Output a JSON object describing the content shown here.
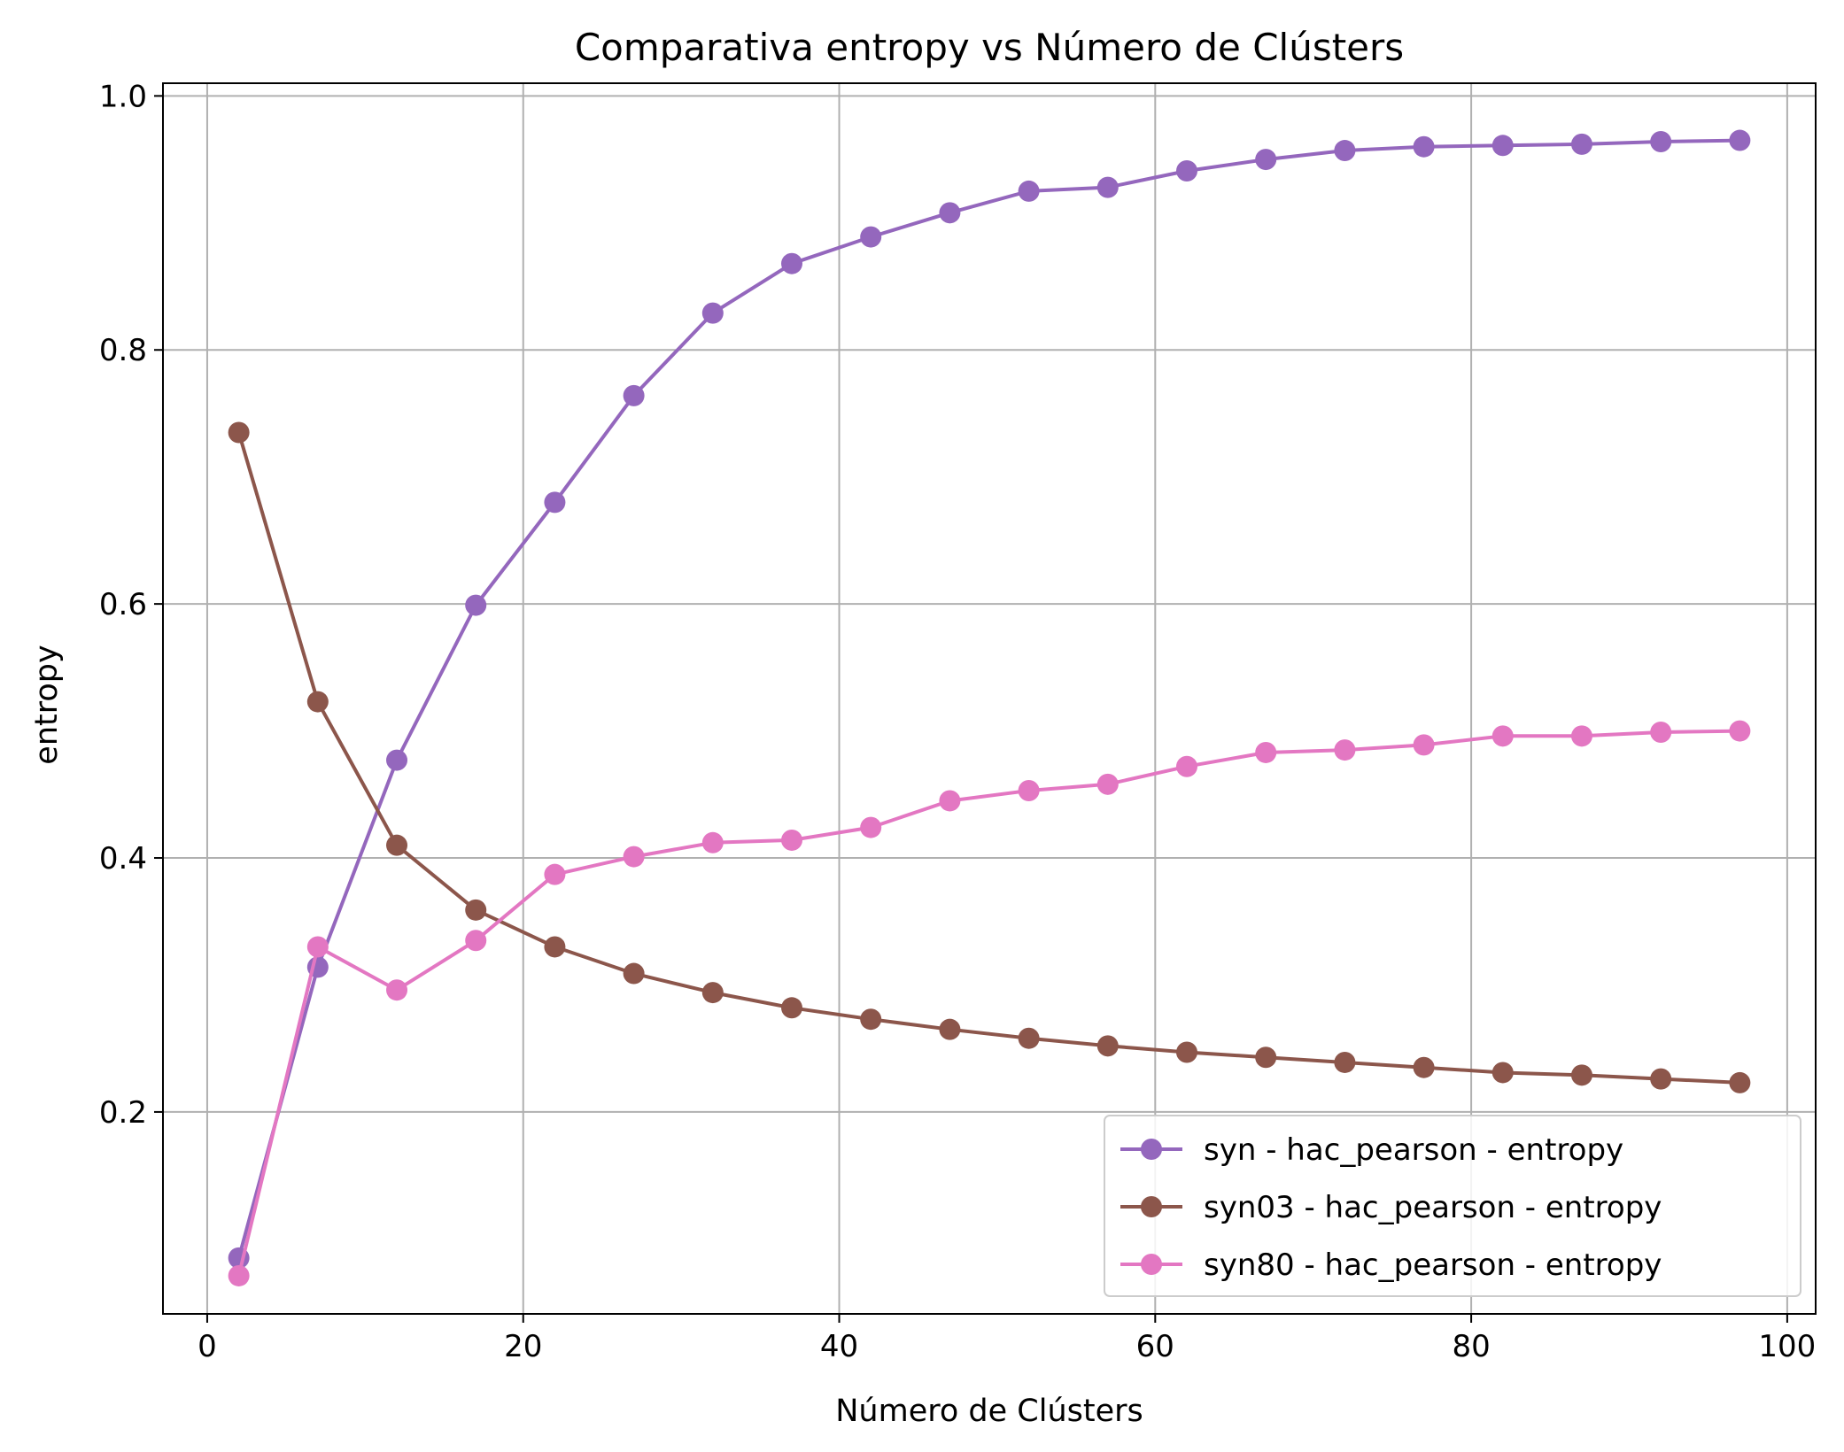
{
  "chart_data": {
    "type": "line",
    "title": "Comparativa entropy vs Número de Clústers",
    "xlabel": "Número de Clústers",
    "ylabel": "entropy",
    "xlim": [
      -2.8,
      101.8
    ],
    "ylim": [
      0.041,
      1.01
    ],
    "xticks": [
      0,
      20,
      40,
      60,
      80,
      100
    ],
    "yticks": [
      0.2,
      0.4,
      0.6,
      0.8,
      1.0
    ],
    "grid": true,
    "legend_position": "lower-right",
    "x": [
      2,
      7,
      12,
      17,
      22,
      27,
      32,
      37,
      42,
      47,
      52,
      57,
      62,
      67,
      72,
      77,
      82,
      87,
      92,
      97
    ],
    "series": [
      {
        "name": "syn - hac_pearson - entropy",
        "color": "#9467bd",
        "values": [
          0.085,
          0.314,
          0.477,
          0.599,
          0.68,
          0.764,
          0.829,
          0.868,
          0.889,
          0.908,
          0.925,
          0.928,
          0.941,
          0.95,
          0.957,
          0.96,
          0.961,
          0.962,
          0.964,
          0.965
        ]
      },
      {
        "name": "syn03 - hac_pearson - entropy",
        "color": "#8c564b",
        "values": [
          0.735,
          0.523,
          0.41,
          0.359,
          0.33,
          0.309,
          0.294,
          0.282,
          0.273,
          0.265,
          0.258,
          0.252,
          0.247,
          0.243,
          0.239,
          0.235,
          0.231,
          0.229,
          0.226,
          0.223
        ]
      },
      {
        "name": "syn80 - hac_pearson - entropy",
        "color": "#e377c2",
        "values": [
          0.071,
          0.33,
          0.296,
          0.335,
          0.387,
          0.401,
          0.412,
          0.414,
          0.424,
          0.445,
          0.453,
          0.458,
          0.472,
          0.483,
          0.485,
          0.489,
          0.496,
          0.496,
          0.499,
          0.5
        ]
      }
    ]
  }
}
